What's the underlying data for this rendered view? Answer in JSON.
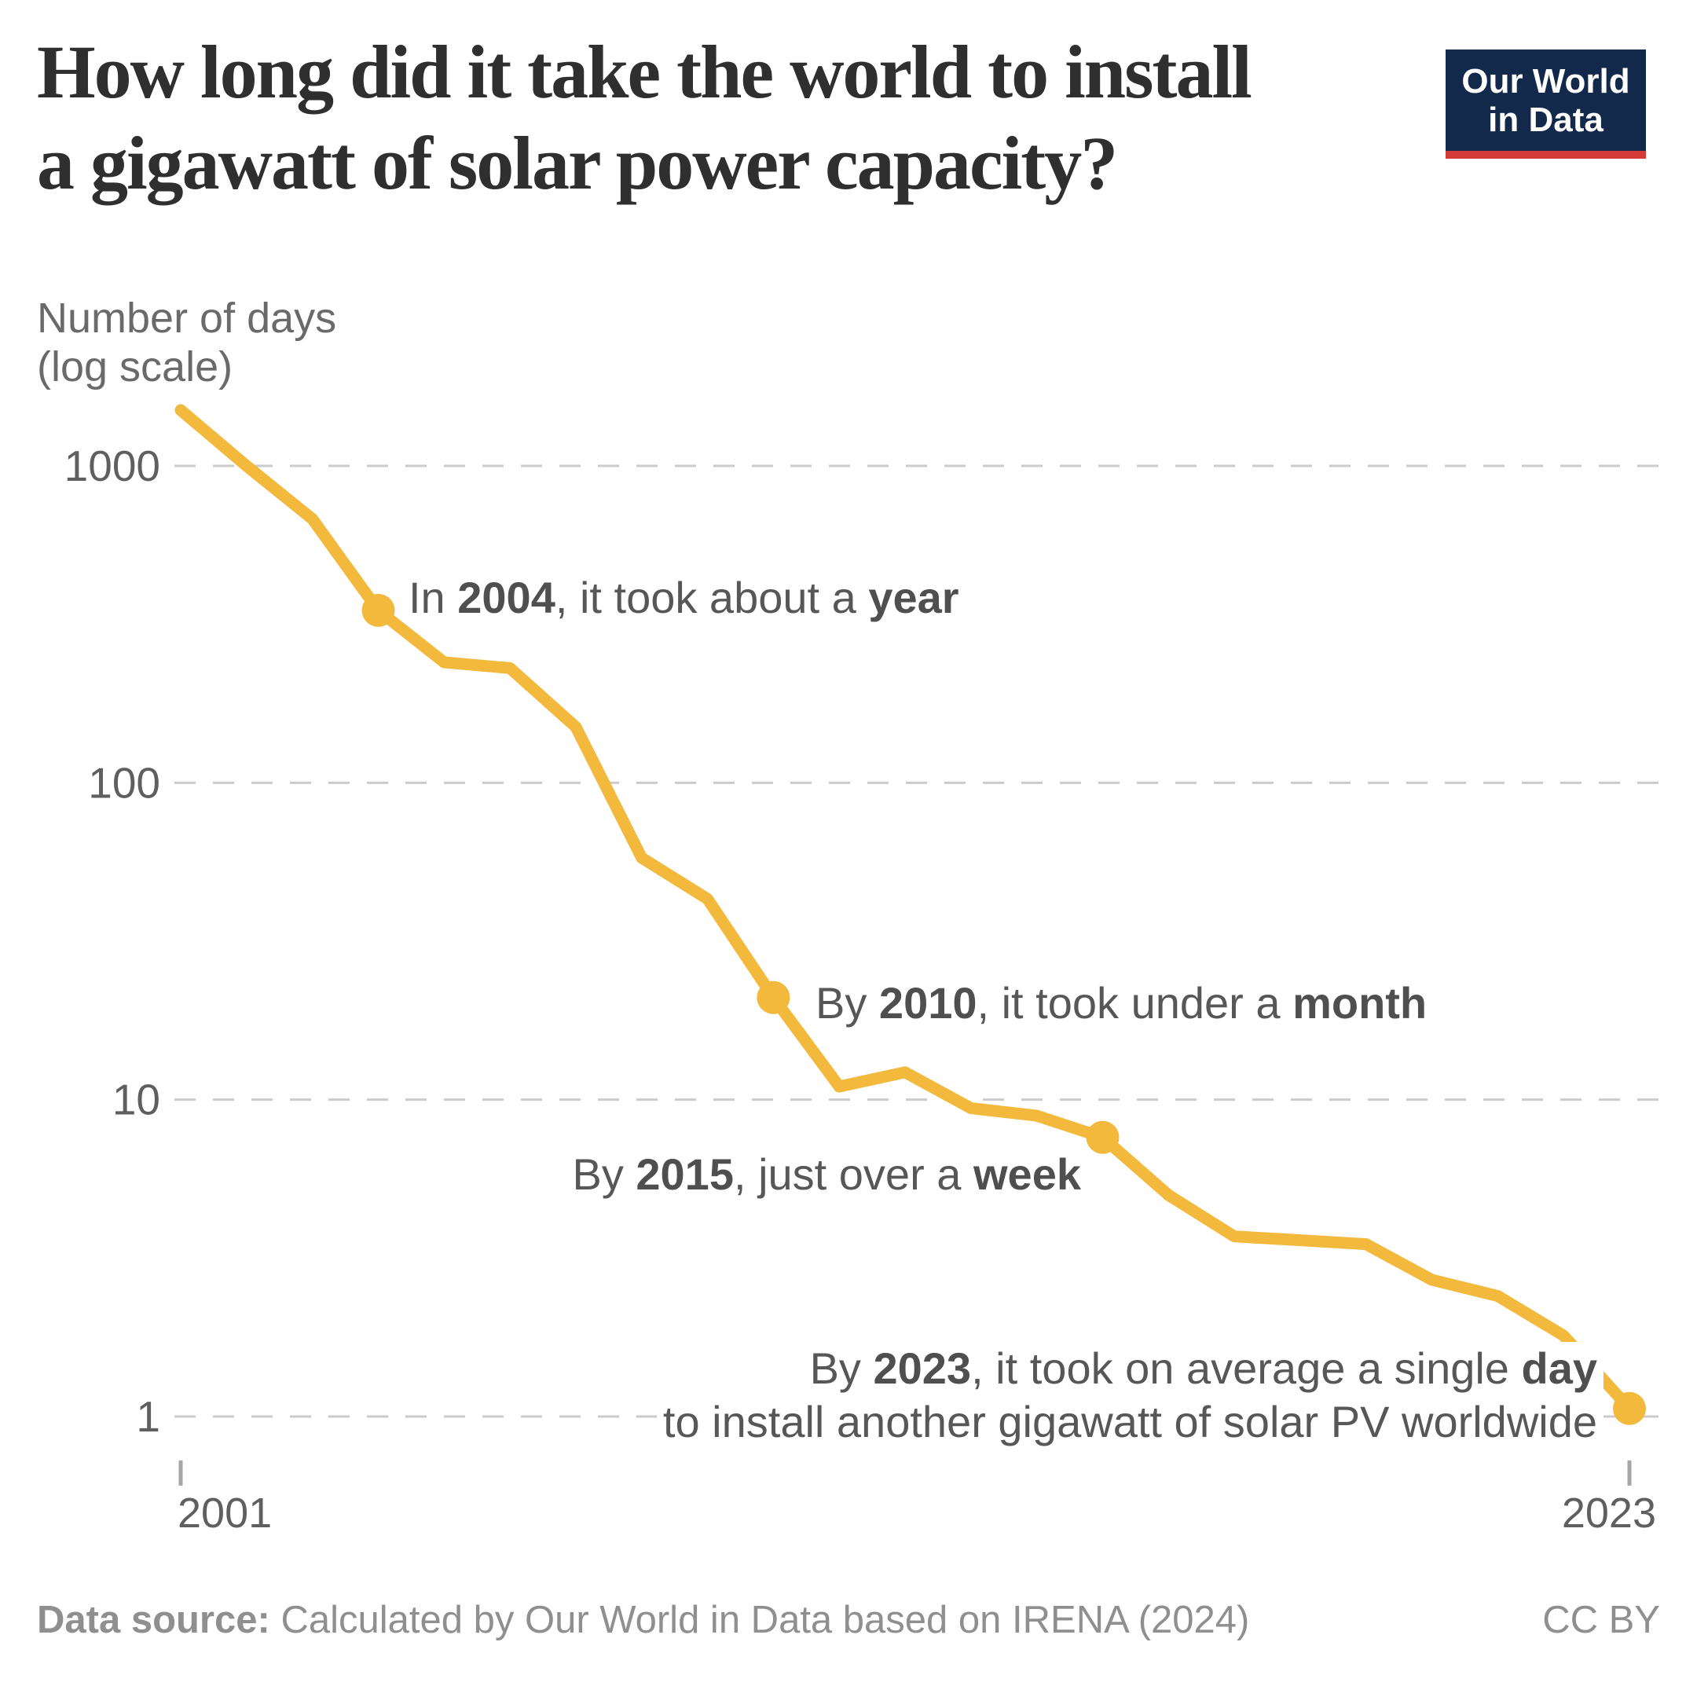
{
  "header": {
    "title_line1": "How long did it take the world to install",
    "title_line2": "a gigawatt of solar power capacity?",
    "logo": {
      "line1": "Our World",
      "line2": "in Data",
      "bg_color": "#13294B",
      "accent_color": "#D43A38"
    }
  },
  "chart_data": {
    "type": "line",
    "title": "How long did it take the world to install a gigawatt of solar power capacity?",
    "series_name": "Number of days to install one gigawatt of solar PV capacity worldwide",
    "ylabel_line1": "Number of days",
    "ylabel_line2": "(log scale)",
    "y_scale": "log",
    "grid": "horizontal-dashed",
    "legend": "none",
    "xlim": [
      2001,
      2023
    ],
    "ylim": [
      1,
      1600
    ],
    "line_color": "#F2B93C",
    "grid_color": "#CBCBCB",
    "tick_text_color": "#5F5F5F",
    "x": [
      2001,
      2002,
      2003,
      2004,
      2005,
      2006,
      2007,
      2008,
      2009,
      2010,
      2011,
      2012,
      2013,
      2014,
      2015,
      2016,
      2017,
      2018,
      2019,
      2020,
      2021,
      2022,
      2023
    ],
    "values": [
      1500,
      1000,
      680,
      350,
      240,
      230,
      150,
      58,
      43,
      21,
      11,
      12.2,
      9.4,
      8.9,
      7.6,
      5.0,
      3.7,
      3.6,
      3.5,
      2.7,
      2.4,
      1.8,
      1.06
    ],
    "y_ticks": [
      {
        "label": "1000",
        "value": 1000
      },
      {
        "label": "100",
        "value": 100
      },
      {
        "label": "10",
        "value": 10
      },
      {
        "label": "1",
        "value": 1
      }
    ],
    "x_ticks": [
      {
        "label": "2001",
        "year": 2001,
        "align": "start"
      },
      {
        "label": "2023",
        "year": 2023,
        "align": "end"
      }
    ],
    "markers": [
      {
        "year": 2004,
        "value": 350
      },
      {
        "year": 2010,
        "value": 21
      },
      {
        "year": 2015,
        "value": 7.6
      },
      {
        "year": 2023,
        "value": 1.06
      }
    ]
  },
  "annotations": [
    {
      "year": "2004",
      "runs": [
        {
          "text": "In ",
          "bold": false
        },
        {
          "text": "2004",
          "bold": true
        },
        {
          "text": ", it took about a ",
          "bold": false
        },
        {
          "text": "year",
          "bold": true
        }
      ]
    },
    {
      "year": "2010",
      "runs": [
        {
          "text": "By ",
          "bold": false
        },
        {
          "text": "2010",
          "bold": true
        },
        {
          "text": ", it took under a ",
          "bold": false
        },
        {
          "text": "month",
          "bold": true
        }
      ]
    },
    {
      "year": "2015",
      "runs": [
        {
          "text": "By ",
          "bold": false
        },
        {
          "text": "2015",
          "bold": true
        },
        {
          "text": ", just over a ",
          "bold": false
        },
        {
          "text": "week",
          "bold": true
        }
      ]
    },
    {
      "year": "2023",
      "line1_runs": [
        {
          "text": "By ",
          "bold": false
        },
        {
          "text": "2023",
          "bold": true
        },
        {
          "text": ", it took on average a single ",
          "bold": false
        },
        {
          "text": "day",
          "bold": true
        }
      ],
      "line2": "to install another gigawatt of solar PV worldwide"
    }
  ],
  "footer": {
    "source_label": "Data source:",
    "source_text": " Calculated by Our World in Data based on IRENA (2024)",
    "license": "CC BY"
  }
}
